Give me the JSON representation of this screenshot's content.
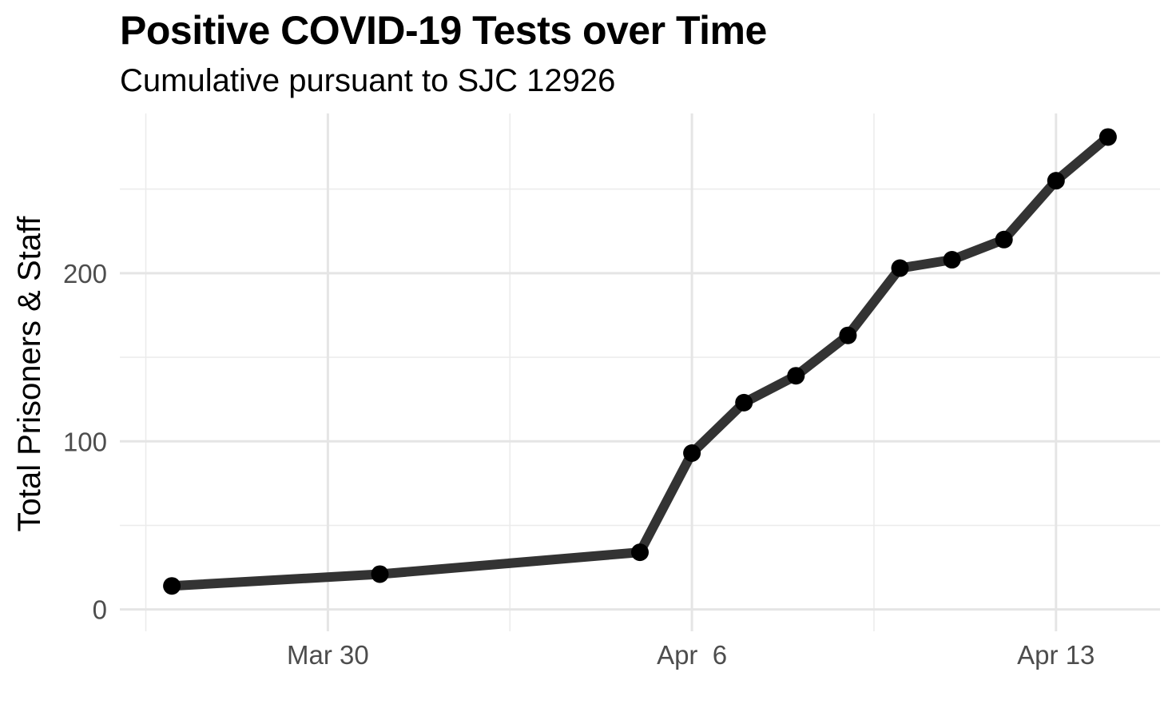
{
  "chart_data": {
    "type": "line",
    "title": "Positive COVID-19 Tests over Time",
    "subtitle": "Cumulative pursuant to SJC 12926",
    "xlabel": "",
    "ylabel": "Total Prisoners & Staff",
    "x_type": "date",
    "xlim": [
      "2020-03-26",
      "2020-04-15"
    ],
    "ylim": [
      -13,
      295
    ],
    "y_ticks": [
      0,
      100,
      200
    ],
    "x_ticks": [
      {
        "date": "2020-03-30",
        "label": "Mar 30"
      },
      {
        "date": "2020-04-06",
        "label": "Apr  6"
      },
      {
        "date": "2020-04-13",
        "label": "Apr 13"
      }
    ],
    "grid": true,
    "legend": "none",
    "series": [
      {
        "color": "#333333",
        "point_color": "#000000",
        "points": [
          {
            "x": "2020-03-27",
            "y": 14
          },
          {
            "x": "2020-03-31",
            "y": 21
          },
          {
            "x": "2020-04-05",
            "y": 34
          },
          {
            "x": "2020-04-06",
            "y": 93
          },
          {
            "x": "2020-04-07",
            "y": 123
          },
          {
            "x": "2020-04-08",
            "y": 139
          },
          {
            "x": "2020-04-09",
            "y": 163
          },
          {
            "x": "2020-04-10",
            "y": 203
          },
          {
            "x": "2020-04-11",
            "y": 208
          },
          {
            "x": "2020-04-12",
            "y": 220
          },
          {
            "x": "2020-04-13",
            "y": 255
          },
          {
            "x": "2020-04-14",
            "y": 281
          }
        ]
      }
    ]
  }
}
